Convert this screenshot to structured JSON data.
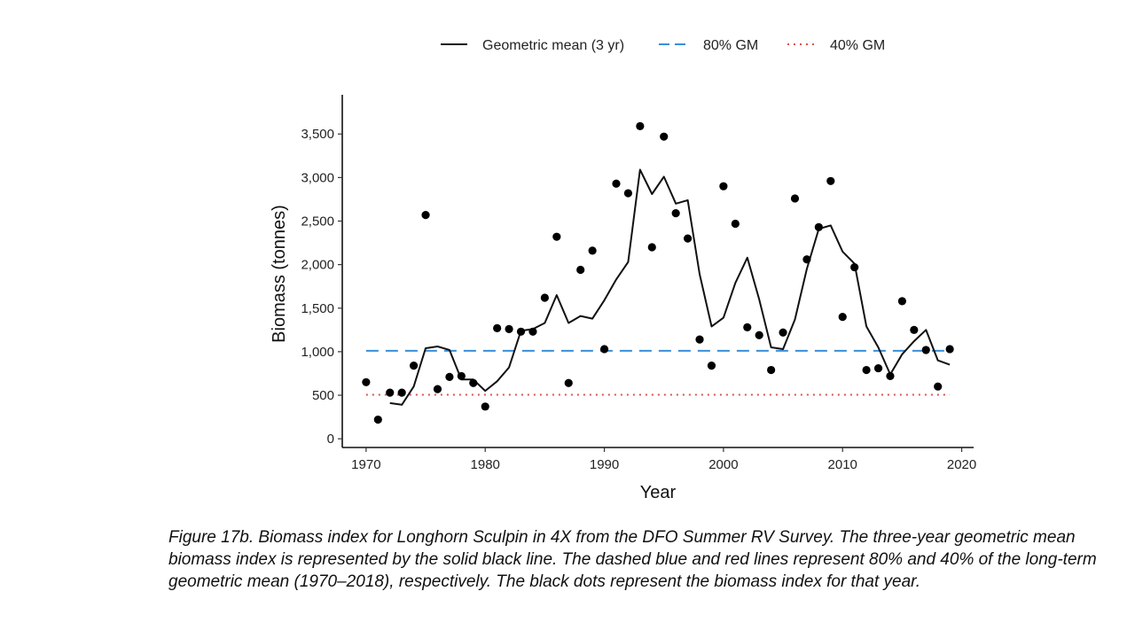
{
  "chart_data": {
    "type": "line",
    "title": "",
    "xlabel": "Year",
    "ylabel": "Biomass (tonnes)",
    "xlim": [
      1968,
      2021
    ],
    "ylim": [
      -100,
      3950
    ],
    "x_ticks": [
      1970,
      1980,
      1990,
      2000,
      2010,
      2020
    ],
    "y_ticks": [
      0,
      500,
      1000,
      1500,
      2000,
      2500,
      3000,
      3500
    ],
    "y_tick_labels": [
      "0",
      "500",
      "1,000",
      "1,500",
      "2,000",
      "2,500",
      "3,000",
      "3,500"
    ],
    "grid": false,
    "legend_position": "top",
    "legend": [
      {
        "label": "Geometric mean (3 yr)",
        "style": "solid",
        "color": "#111111"
      },
      {
        "label": "80% GM",
        "style": "dashed",
        "color": "#3a8fd9"
      },
      {
        "label": "40% GM",
        "style": "dotted",
        "color": "#d9534f"
      }
    ],
    "annual_points": {
      "x": [
        1970,
        1971,
        1972,
        1973,
        1974,
        1975,
        1976,
        1977,
        1978,
        1979,
        1980,
        1981,
        1982,
        1983,
        1984,
        1985,
        1986,
        1987,
        1988,
        1989,
        1990,
        1991,
        1992,
        1993,
        1994,
        1995,
        1996,
        1997,
        1998,
        1999,
        2000,
        2001,
        2002,
        2003,
        2004,
        2005,
        2006,
        2007,
        2008,
        2009,
        2010,
        2011,
        2012,
        2013,
        2014,
        2015,
        2016,
        2017,
        2018,
        2019
      ],
      "y": [
        650,
        220,
        530,
        530,
        840,
        2570,
        570,
        710,
        720,
        640,
        370,
        1270,
        1260,
        1230,
        1230,
        1620,
        2320,
        640,
        1940,
        2160,
        1030,
        2930,
        2820,
        3590,
        2200,
        3470,
        2590,
        2300,
        1140,
        840,
        2900,
        2470,
        1280,
        1190,
        790,
        1220,
        2760,
        2060,
        2430,
        2960,
        1400,
        1970,
        790,
        810,
        720,
        1580,
        1250,
        1020,
        600,
        1030
      ]
    },
    "geometric_mean": {
      "x": [
        1972,
        1973,
        1974,
        1975,
        1976,
        1977,
        1978,
        1979,
        1980,
        1981,
        1982,
        1983,
        1984,
        1985,
        1986,
        1987,
        1988,
        1989,
        1990,
        1991,
        1992,
        1993,
        1994,
        1995,
        1996,
        1997,
        1998,
        1999,
        2000,
        2001,
        2002,
        2003,
        2004,
        2005,
        2006,
        2007,
        2008,
        2009,
        2010,
        2011,
        2012,
        2013,
        2014,
        2015,
        2016,
        2017,
        2018,
        2019
      ],
      "y": [
        410,
        390,
        600,
        1040,
        1060,
        1020,
        680,
        680,
        550,
        660,
        820,
        1240,
        1260,
        1330,
        1650,
        1330,
        1410,
        1380,
        1590,
        1830,
        2030,
        3090,
        2810,
        3010,
        2700,
        2740,
        1890,
        1290,
        1390,
        1790,
        2080,
        1600,
        1050,
        1030,
        1370,
        1950,
        2410,
        2450,
        2150,
        2010,
        1290,
        1050,
        740,
        970,
        1120,
        1250,
        900,
        850
      ]
    },
    "reference_80_gm": {
      "y": 1010,
      "x_start": 1970,
      "x_end": 2019
    },
    "reference_40_gm": {
      "y": 505,
      "x_start": 1970,
      "x_end": 2019
    }
  },
  "caption": "Figure 17b. Biomass index for Longhorn Sculpin in 4X from the DFO Summer RV Survey. The three-year geometric mean biomass index is represented by the solid black line. The dashed blue and red lines represent 80% and 40% of the long-term geometric mean (1970–2018), respectively. The black dots represent the biomass index for that year."
}
